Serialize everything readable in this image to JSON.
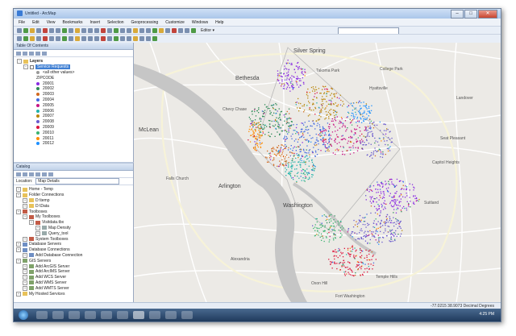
{
  "window": {
    "title": "Untitled - ArcMap",
    "min": "–",
    "max": "□",
    "close": "✕"
  },
  "menu": [
    "File",
    "Edit",
    "View",
    "Bookmarks",
    "Insert",
    "Selection",
    "Geoprocessing",
    "Customize",
    "Windows",
    "Help"
  ],
  "toolbar": {
    "editor_label": "Editor ▾"
  },
  "toc": {
    "header": "Table Of Contents",
    "layers_label": "Layers",
    "layer_name": "Service Requests",
    "all_other_values": "<all other values>",
    "field": "ZIPCODE",
    "years": [
      "20001",
      "20002",
      "20003",
      "20004",
      "20005",
      "20006",
      "20007",
      "20008",
      "20009",
      "20010",
      "20011",
      "20012"
    ],
    "year_colors": [
      "#8a2be2",
      "#2e8b57",
      "#d2691e",
      "#4169e1",
      "#c71585",
      "#20b2aa",
      "#b8860b",
      "#6a5acd",
      "#dc143c",
      "#3cb371",
      "#ff8c00",
      "#1e90ff"
    ]
  },
  "catalog": {
    "header": "Catalog",
    "location_label": "Location:",
    "location_value": "Map Details",
    "items": [
      {
        "label": "Home - Temp",
        "icon": "folder"
      },
      {
        "label": "Folder Connections",
        "icon": "folder"
      },
      {
        "label": "D:\\temp",
        "icon": "folder"
      },
      {
        "label": "D:\\Data",
        "icon": "folder"
      },
      {
        "label": "Toolboxes",
        "icon": "tbx"
      },
      {
        "label": "My Toolboxes",
        "icon": "tbx"
      },
      {
        "label": "Visitdata.tbx",
        "icon": "tbx"
      },
      {
        "label": "Map Density",
        "icon": "gray"
      },
      {
        "label": "Query_tool",
        "icon": "gray"
      },
      {
        "label": "System Toolboxes",
        "icon": "tbx"
      },
      {
        "label": "Database Servers",
        "icon": "db"
      },
      {
        "label": "Database Connections",
        "icon": "db"
      },
      {
        "label": "Add Database Connection",
        "icon": "db"
      },
      {
        "label": "GIS Servers",
        "icon": "srv"
      },
      {
        "label": "Add ArcGIS Server",
        "icon": "srv"
      },
      {
        "label": "Add ArcIMS Server",
        "icon": "srv"
      },
      {
        "label": "Add WCS Server",
        "icon": "srv"
      },
      {
        "label": "Add WMS Server",
        "icon": "srv"
      },
      {
        "label": "Add WMTS Server",
        "icon": "srv"
      },
      {
        "label": "My Hosted Services",
        "icon": "folder"
      }
    ]
  },
  "map": {
    "labels": [
      {
        "text": "Silver Spring",
        "cls": "city"
      },
      {
        "text": "Bethesda",
        "cls": "city"
      },
      {
        "text": "McLean",
        "cls": "city"
      },
      {
        "text": "Arlington",
        "cls": "city"
      },
      {
        "text": "Washington",
        "cls": "city"
      },
      {
        "text": "Takoma Park",
        "cls": "town"
      },
      {
        "text": "College Park",
        "cls": "town"
      },
      {
        "text": "Hyattsville",
        "cls": "town"
      },
      {
        "text": "Seat Pleasant",
        "cls": "town"
      },
      {
        "text": "Temple Hills",
        "cls": "town"
      },
      {
        "text": "Alexandria",
        "cls": "town"
      },
      {
        "text": "Oxon Hill",
        "cls": "town"
      },
      {
        "text": "Suitland",
        "cls": "town"
      },
      {
        "text": "Capitol Heights",
        "cls": "town"
      },
      {
        "text": "Falls Church",
        "cls": "town"
      },
      {
        "text": "Chevy Chase",
        "cls": "town"
      },
      {
        "text": "Fort Washington",
        "cls": "town"
      },
      {
        "text": "Landover",
        "cls": "town"
      }
    ]
  },
  "status": {
    "coords": "-77.0215  38.9073 Decimal Degrees"
  },
  "taskbar": {
    "time": "4:25 PM"
  }
}
